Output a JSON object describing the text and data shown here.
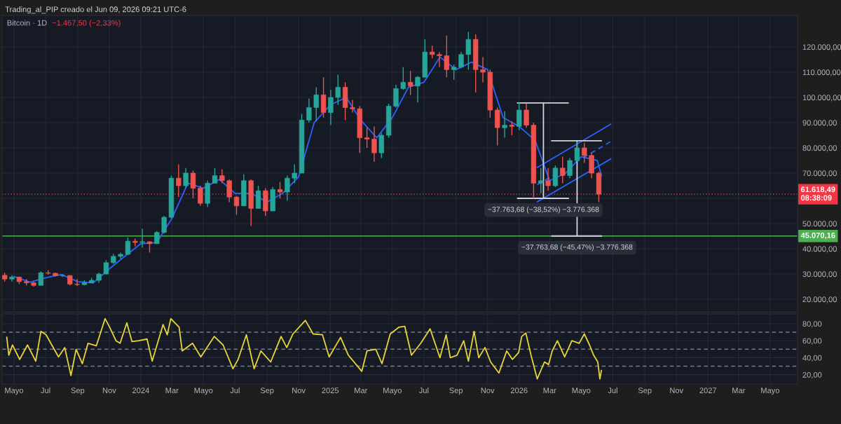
{
  "chart_data": [
    {
      "type": "candlestick",
      "title": "Bitcoin · 1D",
      "subtitle": "−1.467,50 (−2,33%)",
      "annotations": [
        "Trading_al_PIP creado el Jun 09, 2026 09:21 UTC-6",
        {
          "text": "−37.763,68 (−38,52%) −3.776.368",
          "x": "2026-02-17",
          "y": 60000
        },
        {
          "text": "−37.763,68 (−45,47%) −3.776.368",
          "x": "2026-04-23",
          "y": 45070.16
        }
      ],
      "xlim": [
        "2023-04-08",
        "2027-06-23"
      ],
      "xticks": [
        {
          "value": "2023-05-01",
          "label": null
        },
        {
          "value": "2023-07-01",
          "label": null
        },
        {
          "value": "2023-09-01",
          "label": null
        },
        {
          "value": "2023-11-01",
          "label": null
        },
        {
          "value": "2024-01-01",
          "label": null
        },
        {
          "value": "2024-03-01",
          "label": null
        },
        {
          "value": "2024-05-01",
          "label": null
        },
        {
          "value": "2024-07-01",
          "label": null
        },
        {
          "value": "2024-09-01",
          "label": null
        },
        {
          "value": "2024-11-01",
          "label": null
        },
        {
          "value": "2025-01-01",
          "label": null
        },
        {
          "value": "2025-03-01",
          "label": null
        },
        {
          "value": "2025-05-01",
          "label": null
        },
        {
          "value": "2025-07-01",
          "label": null
        },
        {
          "value": "2025-09-01",
          "label": null
        },
        {
          "value": "2025-11-01",
          "label": null
        },
        {
          "value": "2026-01-01",
          "label": null
        },
        {
          "value": "2026-03-01",
          "label": null
        },
        {
          "value": "2026-05-01",
          "label": null
        },
        {
          "value": "2026-07-01",
          "label": null
        },
        {
          "value": "2026-09-01",
          "label": null
        },
        {
          "value": "2026-11-01",
          "label": null
        },
        {
          "value": "2027-01-01",
          "label": null
        },
        {
          "value": "2027-03-01",
          "label": null
        },
        {
          "value": "2027-05-01",
          "label": null
        }
      ],
      "ylim": [
        15000,
        132500
      ],
      "yticks": [
        {
          "value": 20000,
          "label": "20.000,00"
        },
        {
          "value": 30000,
          "label": "30.000,00"
        },
        {
          "value": 40000,
          "label": "40.000,00"
        },
        {
          "value": 50000,
          "label": "50.000,00"
        },
        {
          "value": 60000,
          "label": null
        },
        {
          "value": 70000,
          "label": "70.000,00"
        },
        {
          "value": 80000,
          "label": "80.000,00"
        },
        {
          "value": 90000,
          "label": "90.000,00"
        },
        {
          "value": 100000,
          "label": "100.000,00"
        },
        {
          "value": 110000,
          "label": "110.000,00"
        },
        {
          "value": 120000,
          "label": "120.000,00"
        }
      ],
      "tick_labels": "y",
      "grid": true,
      "ref_lines": [
        {
          "axis": "y",
          "value": 61618.49,
          "label": "61.618,49\n08:38:09",
          "color": "#f23645",
          "line_style": "dotted"
        },
        {
          "axis": "y",
          "value": 45070.16,
          "label": "45.070,16",
          "color": "#4caf50",
          "line_style": "solid"
        }
      ],
      "series": [
        {
          "type": "candlestick",
          "x": [
            "2023-04-13",
            "2023-04-27",
            "2023-05-11",
            "2023-05-25",
            "2023-06-08",
            "2023-06-22",
            "2023-07-06",
            "2023-07-20",
            "2023-08-03",
            "2023-08-17",
            "2023-08-31",
            "2023-09-14",
            "2023-09-28",
            "2023-10-12",
            "2023-10-26",
            "2023-11-09",
            "2023-11-23",
            "2023-12-07",
            "2023-12-21",
            "2024-01-04",
            "2024-01-18",
            "2024-02-01",
            "2024-02-15",
            "2024-02-29",
            "2024-03-14",
            "2024-03-28",
            "2024-04-11",
            "2024-04-25",
            "2024-05-09",
            "2024-05-23",
            "2024-06-06",
            "2024-06-20",
            "2024-07-04",
            "2024-07-18",
            "2024-08-01",
            "2024-08-15",
            "2024-08-29",
            "2024-09-12",
            "2024-09-26",
            "2024-10-10",
            "2024-10-24",
            "2024-11-07",
            "2024-11-21",
            "2024-12-05",
            "2024-12-19",
            "2025-01-02",
            "2025-01-16",
            "2025-01-30",
            "2025-02-13",
            "2025-02-27",
            "2025-03-13",
            "2025-03-27",
            "2025-04-10",
            "2025-04-24",
            "2025-05-08",
            "2025-05-22",
            "2025-06-05",
            "2025-06-19",
            "2025-07-03",
            "2025-07-17",
            "2025-07-31",
            "2025-08-14",
            "2025-08-28",
            "2025-09-11",
            "2025-09-25",
            "2025-10-09",
            "2025-10-23",
            "2025-11-06",
            "2025-11-20",
            "2025-12-04",
            "2025-12-18",
            "2026-01-01",
            "2026-01-15",
            "2026-01-29",
            "2026-02-12",
            "2026-02-26",
            "2026-03-12",
            "2026-03-26",
            "2026-04-09",
            "2026-04-23",
            "2026-05-07",
            "2026-05-21",
            "2026-06-04"
          ],
          "ohlc": [
            [
              29500,
              30500,
              27000,
              28000
            ],
            [
              28000,
              29500,
              27000,
              28800
            ],
            [
              28800,
              29000,
              26000,
              27000
            ],
            [
              27000,
              28000,
              25500,
              26500
            ],
            [
              26500,
              27000,
              25000,
              25500
            ],
            [
              25500,
              31000,
              25500,
              30500
            ],
            [
              30500,
              31500,
              29800,
              30300
            ],
            [
              30300,
              30500,
              29000,
              29300
            ],
            [
              29300,
              30000,
              28800,
              29400
            ],
            [
              29400,
              29500,
              25500,
              26000
            ],
            [
              26000,
              28000,
              25300,
              25800
            ],
            [
              25800,
              27500,
              25500,
              26500
            ],
            [
              26500,
              28500,
              26500,
              27500
            ],
            [
              27500,
              30500,
              26500,
              30000
            ],
            [
              30000,
              35500,
              29800,
              34500
            ],
            [
              34500,
              38000,
              34000,
              37000
            ],
            [
              37000,
              38500,
              36000,
              37800
            ],
            [
              37800,
              44500,
              37500,
              43000
            ],
            [
              43000,
              44000,
              41000,
              42500
            ],
            [
              42500,
              48000,
              40500,
              42800
            ],
            [
              42800,
              43000,
              38500,
              42000
            ],
            [
              42000,
              47000,
              42000,
              46500
            ],
            [
              46500,
              53000,
              46000,
              52500
            ],
            [
              52500,
              69000,
              52000,
              68000
            ],
            [
              68000,
              73500,
              60500,
              65000
            ],
            [
              65000,
              72000,
              64000,
              70000
            ],
            [
              70000,
              71000,
              60000,
              64000
            ],
            [
              64000,
              65000,
              57000,
              58000
            ],
            [
              58000,
              67000,
              56500,
              66000
            ],
            [
              66000,
              72000,
              66000,
              69000
            ],
            [
              69000,
              71500,
              66000,
              67000
            ],
            [
              67000,
              67500,
              58500,
              60500
            ],
            [
              60500,
              61000,
              53500,
              57000
            ],
            [
              57000,
              69500,
              57000,
              67000
            ],
            [
              67000,
              67500,
              49000,
              56000
            ],
            [
              56000,
              65000,
              56000,
              63000
            ],
            [
              63000,
              64000,
              53000,
              55000
            ],
            [
              55000,
              64500,
              55000,
              63500
            ],
            [
              63500,
              66500,
              60000,
              62500
            ],
            [
              62500,
              69000,
              59000,
              68000
            ],
            [
              68000,
              73500,
              66000,
              70000
            ],
            [
              70000,
              93500,
              70000,
              91000
            ],
            [
              91000,
              99500,
              90000,
              96000
            ],
            [
              96000,
              104000,
              90500,
              101000
            ],
            [
              101000,
              108000,
              92000,
              94000
            ],
            [
              94000,
              103000,
              89000,
              100000
            ],
            [
              100000,
              109000,
              97000,
              104000
            ],
            [
              104000,
              106000,
              91000,
              96000
            ],
            [
              96000,
              99000,
              94000,
              95500
            ],
            [
              95500,
              96500,
              78000,
              84000
            ],
            [
              84000,
              88000,
              80000,
              83500
            ],
            [
              83500,
              88500,
              74500,
              78000
            ],
            [
              78000,
              86000,
              76000,
              85000
            ],
            [
              85000,
              97500,
              84000,
              96500
            ],
            [
              96500,
              105000,
              96000,
              103500
            ],
            [
              103500,
              112000,
              103000,
              106000
            ],
            [
              106000,
              110500,
              101000,
              104500
            ],
            [
              104500,
              108500,
              98000,
              108000
            ],
            [
              108000,
              123000,
              108000,
              118000
            ],
            [
              118000,
              120500,
              115500,
              117000
            ],
            [
              117000,
              118000,
              112000,
              116500
            ],
            [
              116500,
              124500,
              108000,
              111000
            ],
            [
              111000,
              113000,
              107000,
              112000
            ],
            [
              112000,
              118000,
              111500,
              117000
            ],
            [
              117000,
              126000,
              111000,
              123000
            ],
            [
              123000,
              125000,
              102000,
              111000
            ],
            [
              111000,
              116000,
              106000,
              110000
            ],
            [
              110000,
              111000,
              92000,
              95000
            ],
            [
              95000,
              96000,
              81000,
              88000
            ],
            [
              88000,
              94500,
              84000,
              89000
            ],
            [
              89000,
              90500,
              85000,
              88500
            ],
            [
              88500,
              98000,
              87000,
              95000
            ],
            [
              95000,
              97500,
              88000,
              89000
            ],
            [
              89000,
              90000,
              60000,
              66000
            ],
            [
              66000,
              72000,
              62000,
              67000
            ],
            [
              67000,
              72000,
              63000,
              65000
            ],
            [
              65000,
              73000,
              64500,
              72000
            ],
            [
              72000,
              76500,
              66000,
              69000
            ],
            [
              69000,
              76000,
              68000,
              75000
            ],
            [
              75000,
              82500,
              74500,
              80000
            ],
            [
              80000,
              82000,
              74000,
              77000
            ],
            [
              77000,
              78000,
              68000,
              70000
            ],
            [
              70000,
              70500,
              58500,
              61618.49
            ]
          ],
          "colors": [
            "#ef5350",
            "#26a69a",
            "#ef5350",
            "#ef5350",
            "#ef5350",
            "#26a69a",
            "#ef5350",
            "#ef5350",
            "#26a69a",
            "#ef5350",
            "#ef5350",
            "#26a69a",
            "#26a69a",
            "#26a69a",
            "#26a69a",
            "#26a69a",
            "#26a69a",
            "#26a69a",
            "#ef5350",
            "#26a69a",
            "#ef5350",
            "#26a69a",
            "#26a69a",
            "#26a69a",
            "#ef5350",
            "#26a69a",
            "#ef5350",
            "#ef5350",
            "#26a69a",
            "#26a69a",
            "#ef5350",
            "#ef5350",
            "#ef5350",
            "#26a69a",
            "#ef5350",
            "#26a69a",
            "#ef5350",
            "#26a69a",
            "#ef5350",
            "#26a69a",
            "#26a69a",
            "#26a69a",
            "#26a69a",
            "#26a69a",
            "#ef5350",
            "#26a69a",
            "#26a69a",
            "#ef5350",
            "#ef5350",
            "#ef5350",
            "#ef5350",
            "#ef5350",
            "#26a69a",
            "#26a69a",
            "#26a69a",
            "#26a69a",
            "#ef5350",
            "#26a69a",
            "#26a69a",
            "#ef5350",
            "#ef5350",
            "#ef5350",
            "#26a69a",
            "#26a69a",
            "#26a69a",
            "#ef5350",
            "#ef5350",
            "#ef5350",
            "#ef5350",
            "#26a69a",
            "#ef5350",
            "#26a69a",
            "#ef5350",
            "#ef5350",
            "#26a69a",
            "#ef5350",
            "#26a69a",
            "#ef5350",
            "#26a69a",
            "#26a69a",
            "#ef5350",
            "#ef5350",
            "#ef5350"
          ]
        },
        {
          "type": "line",
          "color": "#2962ff",
          "line_style": "solid",
          "x": [
            "2023-05-01",
            "2023-06-01",
            "2023-07-01",
            "2023-08-01",
            "2023-09-01",
            "2023-10-01",
            "2023-11-01",
            "2023-12-01",
            "2024-01-01",
            "2024-02-01",
            "2024-03-01",
            "2024-04-01",
            "2024-05-01",
            "2024-06-01",
            "2024-07-01",
            "2024-08-01",
            "2024-09-01",
            "2024-10-01",
            "2024-11-01",
            "2024-12-01",
            "2025-01-01",
            "2025-02-01",
            "2025-03-01",
            "2025-04-01",
            "2025-05-01",
            "2025-06-01",
            "2025-07-01",
            "2025-08-01",
            "2025-09-01",
            "2025-10-01",
            "2025-11-01",
            "2025-12-01",
            "2026-01-01",
            "2026-02-01",
            "2026-03-01",
            "2026-04-01",
            "2026-05-01",
            "2026-06-01",
            "2026-06-09"
          ],
          "values": [
            29000,
            26800,
            28500,
            29800,
            27000,
            26500,
            32000,
            37000,
            42000,
            42500,
            52000,
            66000,
            64000,
            67500,
            62000,
            62000,
            58500,
            62000,
            68500,
            90000,
            97000,
            100000,
            91000,
            84000,
            92000,
            104000,
            106000,
            116000,
            111000,
            114000,
            111000,
            92000,
            88500,
            83000,
            67000,
            70000,
            76500,
            75000,
            69000
          ]
        },
        {
          "type": "line",
          "color": "#2962ff",
          "line_style": "solid",
          "x": [
            "2026-02-05",
            "2026-06-27"
          ],
          "values": [
            72200,
            89400
          ]
        },
        {
          "type": "line",
          "color": "#2962ff",
          "line_style": "dashed",
          "x": [
            "2026-02-05",
            "2026-06-27"
          ],
          "values": [
            65400,
            82500
          ]
        },
        {
          "type": "line",
          "color": "#2962ff",
          "line_style": "solid",
          "x": [
            "2026-02-05",
            "2026-06-27"
          ],
          "values": [
            58600,
            75600
          ]
        },
        {
          "type": "line",
          "color": "#d1d4dc",
          "line_style": "solid",
          "x": [
            "2025-12-29",
            "2026-04-06",
            "2026-02-17",
            "2026-02-17",
            "2025-12-29",
            "2026-04-06"
          ],
          "values": [
            97800,
            97800,
            97800,
            60000,
            60000,
            60000
          ]
        },
        {
          "type": "line",
          "color": "#d1d4dc",
          "line_style": "solid",
          "x": [
            "2026-03-05",
            "2026-06-09",
            "2026-04-23",
            "2026-04-23",
            "2026-03-05",
            "2026-06-09"
          ],
          "values": [
            82800,
            82800,
            82800,
            45070.16,
            45070.16,
            45070.16
          ]
        }
      ]
    },
    {
      "type": "line",
      "xlim": [
        "2023-04-08",
        "2027-06-23"
      ],
      "xticks": [
        {
          "value": "2023-05-01",
          "label": "Mayo"
        },
        {
          "value": "2023-07-01",
          "label": "Jul"
        },
        {
          "value": "2023-09-01",
          "label": "Sep"
        },
        {
          "value": "2023-11-01",
          "label": "Nov"
        },
        {
          "value": "2024-01-01",
          "label": "2024"
        },
        {
          "value": "2024-03-01",
          "label": "Mar"
        },
        {
          "value": "2024-05-01",
          "label": "Mayo"
        },
        {
          "value": "2024-07-01",
          "label": "Jul"
        },
        {
          "value": "2024-09-01",
          "label": "Sep"
        },
        {
          "value": "2024-11-01",
          "label": "Nov"
        },
        {
          "value": "2025-01-01",
          "label": "2025"
        },
        {
          "value": "2025-03-01",
          "label": "Mar"
        },
        {
          "value": "2025-05-01",
          "label": "Mayo"
        },
        {
          "value": "2025-07-01",
          "label": "Jul"
        },
        {
          "value": "2025-09-01",
          "label": "Sep"
        },
        {
          "value": "2025-11-01",
          "label": "Nov"
        },
        {
          "value": "2026-01-01",
          "label": "2026"
        },
        {
          "value": "2026-03-01",
          "label": "Mar"
        },
        {
          "value": "2026-05-01",
          "label": "Mayo"
        },
        {
          "value": "2026-07-01",
          "label": "Jul"
        },
        {
          "value": "2026-09-01",
          "label": "Sep"
        },
        {
          "value": "2026-11-01",
          "label": "Nov"
        },
        {
          "value": "2027-01-01",
          "label": "2027"
        },
        {
          "value": "2027-03-01",
          "label": "Mar"
        },
        {
          "value": "2027-05-01",
          "label": "Mayo"
        }
      ],
      "ylim": [
        9,
        91.5
      ],
      "yticks": [
        {
          "value": 20,
          "label": "20,00"
        },
        {
          "value": 40,
          "label": "40,00"
        },
        {
          "value": 60,
          "label": "60,00"
        },
        {
          "value": 80,
          "label": "80,00"
        }
      ],
      "grid": true,
      "ref_lines": [
        {
          "axis": "y",
          "value": 70,
          "color": "#787b86",
          "line_style": "dashed"
        },
        {
          "axis": "y",
          "value": 50,
          "color": "#787b86",
          "line_style": "dashed"
        },
        {
          "axis": "y",
          "value": 30,
          "color": "#787b86",
          "line_style": "dashed"
        }
      ],
      "series": [
        {
          "color": "#e8d53a",
          "x": [
            "2023-04-17",
            "2023-04-21",
            "2023-04-28",
            "2023-05-12",
            "2023-05-27",
            "2023-06-12",
            "2023-06-22",
            "2023-07-02",
            "2023-07-13",
            "2023-07-26",
            "2023-08-07",
            "2023-08-19",
            "2023-08-29",
            "2023-09-10",
            "2023-09-21",
            "2023-10-07",
            "2023-10-24",
            "2023-11-01",
            "2023-11-14",
            "2023-11-22",
            "2023-12-05",
            "2023-12-15",
            "2023-12-28",
            "2024-01-13",
            "2024-01-23",
            "2024-02-13",
            "2024-02-21",
            "2024-02-28",
            "2024-03-15",
            "2024-03-21",
            "2024-04-10",
            "2024-04-26",
            "2024-05-22",
            "2024-06-08",
            "2024-06-27",
            "2024-07-07",
            "2024-07-23",
            "2024-08-07",
            "2024-08-20",
            "2024-09-08",
            "2024-09-28",
            "2024-10-09",
            "2024-10-21",
            "2024-11-14",
            "2024-11-29",
            "2024-12-17",
            "2024-12-30",
            "2025-01-21",
            "2025-02-05",
            "2025-03-03",
            "2025-03-13",
            "2025-03-30",
            "2025-04-11",
            "2025-04-27",
            "2025-05-14",
            "2025-05-25",
            "2025-06-07",
            "2025-06-25",
            "2025-07-13",
            "2025-08-01",
            "2025-08-13",
            "2025-08-21",
            "2025-09-03",
            "2025-09-16",
            "2025-09-25",
            "2025-10-06",
            "2025-10-15",
            "2025-10-27",
            "2025-11-07",
            "2025-11-23",
            "2025-12-08",
            "2025-12-19",
            "2025-12-31",
            "2026-01-06",
            "2026-01-14",
            "2026-01-24",
            "2026-02-05",
            "2026-02-19",
            "2026-02-27",
            "2026-03-06",
            "2026-03-16",
            "2026-03-30",
            "2026-04-13",
            "2026-04-27",
            "2026-05-07",
            "2026-05-17",
            "2026-05-25",
            "2026-06-02",
            "2026-06-06",
            "2026-06-09"
          ],
          "values": [
            64,
            43,
            55,
            38,
            55,
            36,
            71,
            67,
            55,
            41,
            52,
            19,
            50,
            33,
            57,
            54,
            86,
            77,
            60,
            57,
            81,
            59,
            60,
            62,
            36,
            79,
            67,
            86,
            76,
            48,
            57,
            41,
            65,
            55,
            27,
            38,
            67,
            27,
            48,
            35,
            65,
            52,
            68,
            84,
            68,
            67,
            41,
            64,
            43,
            24,
            48,
            50,
            33,
            68,
            76,
            77,
            43,
            57,
            74,
            40,
            67,
            40,
            43,
            60,
            36,
            71,
            40,
            52,
            35,
            22,
            48,
            38,
            46,
            65,
            69,
            43,
            15,
            35,
            32,
            48,
            60,
            41,
            60,
            57,
            68,
            55,
            43,
            35,
            15,
            25
          ]
        }
      ]
    }
  ]
}
